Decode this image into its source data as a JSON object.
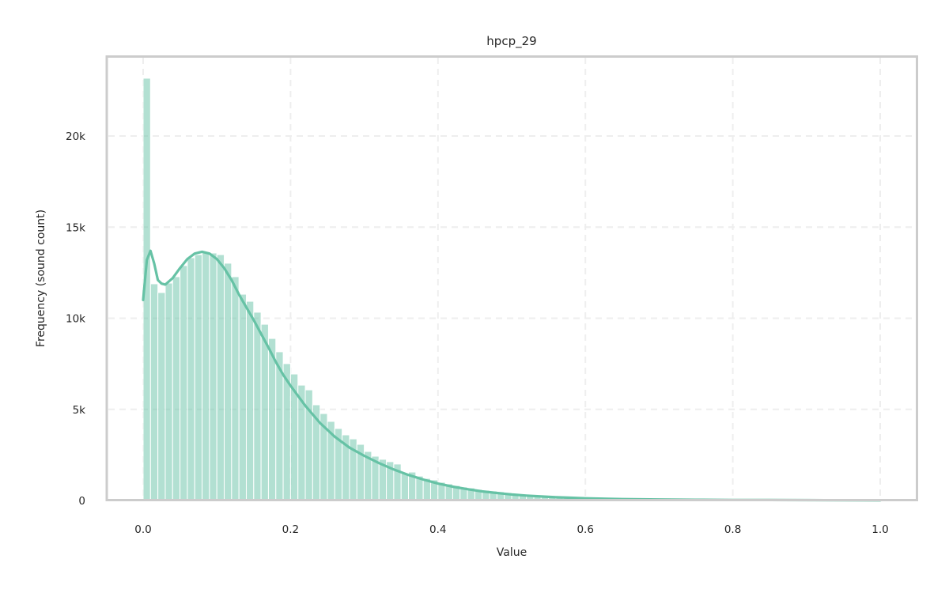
{
  "chart_data": {
    "type": "bar",
    "title": "hpcp_29",
    "xlabel": "Value",
    "ylabel": "Frequency (sound count)",
    "xlim": [
      -0.025,
      1.025
    ],
    "ylim": [
      0,
      24400
    ],
    "grid": true,
    "legend": null,
    "bin_width": 0.01,
    "bin_start": 0.0,
    "bar_color": "#66c2a5",
    "bar_alpha": 0.5,
    "kde_color": "#66c2a5",
    "frame_color": "#cccccc",
    "grid_color": "#eeeeee",
    "x_ticks": [
      0.0,
      0.2,
      0.4,
      0.6,
      0.8,
      1.0
    ],
    "x_tick_labels": [
      "0.0",
      "0.2",
      "0.4",
      "0.6",
      "0.8",
      "1.0"
    ],
    "y_ticks": [
      0,
      5000,
      10000,
      15000,
      20000
    ],
    "y_tick_labels": [
      "0",
      "5k",
      "10k",
      "15k",
      "20k"
    ],
    "categories": [
      0.0,
      0.01,
      0.02,
      0.03,
      0.04,
      0.05,
      0.06,
      0.07,
      0.08,
      0.09,
      0.1,
      0.11,
      0.12,
      0.13,
      0.14,
      0.15,
      0.16,
      0.17,
      0.18,
      0.19,
      0.2,
      0.21,
      0.22,
      0.23,
      0.24,
      0.25,
      0.26,
      0.27,
      0.28,
      0.29,
      0.3,
      0.31,
      0.32,
      0.33,
      0.34,
      0.35,
      0.36,
      0.37,
      0.38,
      0.39,
      0.4,
      0.41,
      0.42,
      0.43,
      0.44,
      0.45,
      0.46,
      0.47,
      0.48,
      0.49,
      0.5,
      0.51,
      0.52,
      0.53,
      0.54,
      0.55,
      0.56,
      0.57,
      0.58,
      0.59,
      0.6,
      0.61,
      0.62,
      0.63,
      0.64,
      0.65,
      0.66,
      0.67,
      0.68,
      0.69,
      0.7,
      0.71,
      0.72,
      0.73,
      0.74,
      0.75,
      0.76,
      0.77,
      0.78,
      0.79,
      0.8,
      0.81,
      0.82,
      0.83,
      0.84,
      0.85,
      0.86,
      0.87,
      0.88,
      0.89,
      0.9,
      0.91,
      0.92,
      0.93,
      0.94,
      0.95,
      0.96,
      0.97,
      0.98,
      0.99
    ],
    "values": [
      23170,
      11890,
      11410,
      11930,
      12280,
      12890,
      13320,
      13490,
      13620,
      13580,
      13490,
      13020,
      12280,
      11320,
      10930,
      10330,
      9670,
      8890,
      8160,
      7510,
      6940,
      6330,
      6070,
      5250,
      4770,
      4340,
      3950,
      3600,
      3380,
      3080,
      2690,
      2430,
      2260,
      2130,
      2000,
      1480,
      1560,
      1340,
      1210,
      1130,
      1000,
      910,
      820,
      740,
      690,
      610,
      560,
      520,
      480,
      430,
      390,
      350,
      300,
      260,
      240,
      220,
      195,
      170,
      150,
      130,
      120,
      112,
      105,
      98,
      92,
      88,
      84,
      80,
      76,
      72,
      70,
      68,
      66,
      64,
      62,
      60,
      58,
      56,
      55,
      54,
      53,
      52,
      51,
      50,
      49,
      48,
      47,
      46,
      45,
      44,
      44,
      43,
      43,
      42,
      42,
      41,
      41,
      40,
      40,
      60
    ],
    "kde": {
      "x": [
        0.0,
        0.005,
        0.01,
        0.015,
        0.02,
        0.025,
        0.03,
        0.04,
        0.05,
        0.06,
        0.07,
        0.08,
        0.09,
        0.1,
        0.11,
        0.12,
        0.13,
        0.14,
        0.15,
        0.16,
        0.17,
        0.18,
        0.19,
        0.2,
        0.22,
        0.24,
        0.26,
        0.28,
        0.3,
        0.32,
        0.34,
        0.36,
        0.38,
        0.4,
        0.42,
        0.44,
        0.46,
        0.48,
        0.5,
        0.52,
        0.54,
        0.56,
        0.58,
        0.6,
        0.65,
        0.7,
        0.75,
        0.8,
        0.85,
        0.9,
        0.95,
        1.0
      ],
      "y": [
        11000,
        13200,
        13700,
        13000,
        12100,
        11900,
        11850,
        12200,
        12750,
        13250,
        13550,
        13650,
        13550,
        13250,
        12750,
        12100,
        11300,
        10600,
        9900,
        9150,
        8400,
        7600,
        6900,
        6300,
        5200,
        4250,
        3500,
        2900,
        2450,
        2050,
        1700,
        1400,
        1150,
        930,
        760,
        620,
        500,
        410,
        330,
        270,
        220,
        180,
        150,
        120,
        80,
        55,
        40,
        30,
        25,
        20,
        15,
        10
      ]
    }
  }
}
